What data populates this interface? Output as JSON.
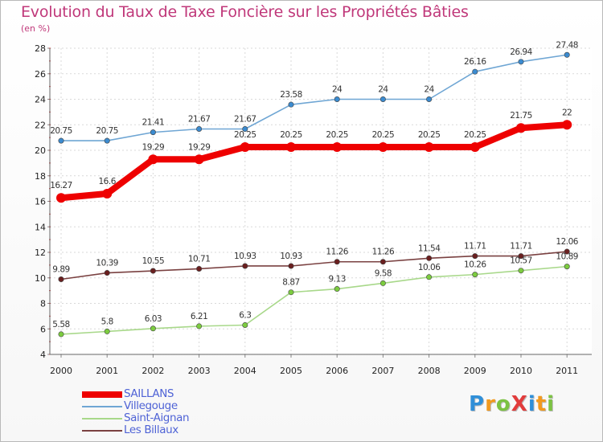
{
  "title": "Evolution du Taux de Taxe Foncière sur les Propriétés Bâties",
  "unit_label": "(en %)",
  "logo": {
    "text": "Proxiti",
    "letters": [
      {
        "ch": "P",
        "color": "#2f8fd8"
      },
      {
        "ch": "r",
        "color": "#f29a1e"
      },
      {
        "ch": "o",
        "color": "#7cc243"
      },
      {
        "ch": "X",
        "color": "#e23c3c"
      },
      {
        "ch": "i",
        "color": "#2f8fd8"
      },
      {
        "ch": "t",
        "color": "#f29a1e"
      },
      {
        "ch": "i",
        "color": "#7cc243"
      }
    ]
  },
  "chart_data": {
    "type": "line",
    "title": "Evolution du Taux de Taxe Foncière sur les Propriétés Bâties",
    "ylabel": "(en %)",
    "xlabel": "",
    "ylim": [
      4,
      28
    ],
    "yticks": [
      4,
      6,
      8,
      10,
      12,
      14,
      16,
      18,
      20,
      22,
      24,
      26,
      28
    ],
    "categories": [
      "2000",
      "2001",
      "2002",
      "2003",
      "2004",
      "2005",
      "2006",
      "2007",
      "2008",
      "2009",
      "2010",
      "2011"
    ],
    "grid": true,
    "series": [
      {
        "name": "SAILLANS",
        "color": "#ee0000",
        "marker_color": "#ee0000",
        "bold": true,
        "values": [
          16.27,
          16.6,
          19.29,
          19.29,
          20.25,
          20.25,
          20.25,
          20.25,
          20.25,
          20.25,
          21.75,
          22
        ],
        "labels": [
          "16.27",
          "16.6",
          "19.29",
          "19.29",
          "20.25",
          "20.25",
          "20.25",
          "20.25",
          "20.25",
          "20.25",
          "21.75",
          "22"
        ]
      },
      {
        "name": "Villegouge",
        "color": "#6fa6d4",
        "marker_color": "#3b8bd0",
        "bold": false,
        "values": [
          20.75,
          20.75,
          21.41,
          21.67,
          21.67,
          23.58,
          24,
          24,
          24,
          26.16,
          26.94,
          27.48
        ],
        "labels": [
          "20.75",
          "20.75",
          "21.41",
          "21.67",
          "21.67",
          "23.58",
          "24",
          "24",
          "24",
          "26.16",
          "26.94",
          "27.48"
        ]
      },
      {
        "name": "Saint-Aignan",
        "color": "#a8d88a",
        "marker_color": "#7ccc3f",
        "bold": false,
        "values": [
          5.58,
          5.8,
          6.03,
          6.21,
          6.3,
          8.87,
          9.13,
          9.58,
          10.06,
          10.26,
          10.57,
          10.89
        ],
        "labels": [
          "5.58",
          "5.8",
          "6.03",
          "6.21",
          "6.3",
          "8.87",
          "9.13",
          "9.58",
          "10.06",
          "10.26",
          "10.57",
          "10.89"
        ]
      },
      {
        "name": "Les Billaux",
        "color": "#7a4141",
        "marker_color": "#6a1f1f",
        "bold": false,
        "values": [
          9.89,
          10.39,
          10.55,
          10.71,
          10.93,
          10.93,
          11.26,
          11.26,
          11.54,
          11.71,
          11.71,
          12.06
        ],
        "labels": [
          "9.89",
          "10.39",
          "10.55",
          "10.71",
          "10.93",
          "10.93",
          "11.26",
          "11.26",
          "11.54",
          "11.71",
          "11.71",
          "12.06"
        ]
      }
    ]
  }
}
